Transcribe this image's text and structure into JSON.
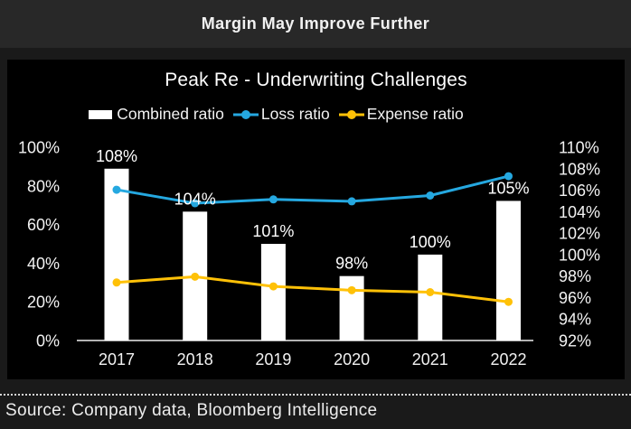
{
  "header": {
    "title": "Margin May Improve Further"
  },
  "footer": {
    "source": "Source: Company data, Bloomberg Intelligence"
  },
  "colors": {
    "page_background": "#1a1a1a",
    "header_background": "#282828",
    "chart_background": "#000000",
    "bar": "#ffffff",
    "loss_line": "#25a8e0",
    "expense_line": "#ffc107",
    "axis_line": "#b3b3b3",
    "text": "#f2f2f2"
  },
  "chart_data": {
    "type": "bar",
    "subtype": "combo-bar-line",
    "title": "Peak Re - Underwriting Challenges",
    "categories": [
      "2017",
      "2018",
      "2019",
      "2020",
      "2021",
      "2022"
    ],
    "series": [
      {
        "name": "Combined ratio",
        "type": "bar",
        "axis": "right",
        "color": "#ffffff",
        "values": [
          108,
          104,
          101,
          98,
          100,
          105
        ],
        "labels": [
          "108%",
          "104%",
          "101%",
          "98%",
          "100%",
          "105%"
        ]
      },
      {
        "name": "Loss ratio",
        "type": "line",
        "axis": "left",
        "color": "#25a8e0",
        "values": [
          78,
          71,
          73,
          72,
          75,
          85
        ]
      },
      {
        "name": "Expense ratio",
        "type": "line",
        "axis": "left",
        "color": "#ffc107",
        "values": [
          30,
          33,
          28,
          26,
          25,
          20
        ]
      }
    ],
    "left_axis": {
      "min": 0,
      "max": 100,
      "tick_values": [
        100,
        80,
        60,
        40,
        20,
        0
      ],
      "ticks": [
        "100%",
        "80%",
        "60%",
        "40%",
        "20%",
        "0%"
      ]
    },
    "right_axis": {
      "min": 92,
      "max": 110,
      "tick_values": [
        110,
        108,
        106,
        104,
        102,
        100,
        98,
        96,
        94,
        92
      ],
      "ticks": [
        "110%",
        "108%",
        "106%",
        "104%",
        "102%",
        "100%",
        "98%",
        "96%",
        "94%",
        "92%"
      ]
    },
    "legend_position": "top",
    "grid": "off"
  }
}
